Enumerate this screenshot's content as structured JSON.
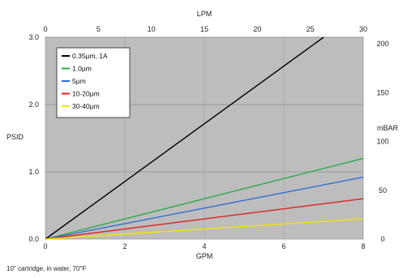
{
  "chart_data": {
    "type": "line",
    "xlabel": "GPM",
    "ylabel": "PSID",
    "x2label": "LPM",
    "y2label": "mBAR",
    "xlim": [
      0,
      8
    ],
    "ylim": [
      0,
      3.0
    ],
    "x_ticks": [
      0,
      2,
      4,
      6,
      8
    ],
    "x_tick_labels": [
      "0",
      "2",
      "4",
      "6",
      "8"
    ],
    "y_ticks": [
      0,
      1.0,
      2.0,
      3.0
    ],
    "y_tick_labels": [
      "0.0",
      "1.0",
      "2.0",
      "3.0"
    ],
    "x2lim": [
      0,
      30
    ],
    "x2_ticks": [
      0,
      5,
      10,
      15,
      20,
      25,
      30
    ],
    "x2_tick_labels": [
      "0",
      "5",
      "10",
      "15",
      "20",
      "25",
      "30"
    ],
    "y2lim": [
      0,
      206.8
    ],
    "y2_ticks": [
      0,
      50,
      100,
      150,
      200
    ],
    "y2_tick_labels": [
      "0",
      "50",
      "100",
      "150",
      "200"
    ],
    "grid": true,
    "legend_position": "top-left",
    "series": [
      {
        "name": "0.35µm, 1A",
        "color": "#000000",
        "x": [
          0,
          7.0
        ],
        "y": [
          0,
          3.0
        ]
      },
      {
        "name": "1.0µm",
        "color": "#2aa84a",
        "x": [
          0,
          8
        ],
        "y": [
          0,
          1.2
        ]
      },
      {
        "name": "5µm",
        "color": "#2b6fd6",
        "x": [
          0,
          8
        ],
        "y": [
          0,
          0.92
        ]
      },
      {
        "name": "10-20µm",
        "color": "#e02020",
        "x": [
          0,
          8
        ],
        "y": [
          0,
          0.6
        ]
      },
      {
        "name": "30-40µm",
        "color": "#f2e600",
        "x": [
          0,
          8
        ],
        "y": [
          0,
          0.3
        ]
      }
    ],
    "annotation": "10\" cartridge, in water, 70°F"
  }
}
